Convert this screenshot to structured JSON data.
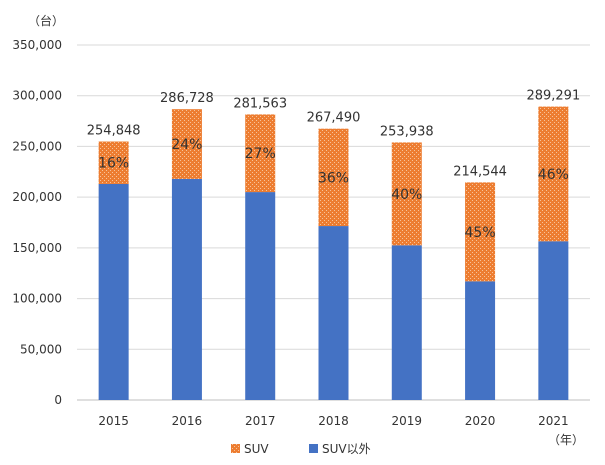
{
  "chart_data": {
    "type": "bar",
    "stacked": true,
    "y_unit": "（台）",
    "x_unit": "（年）",
    "categories": [
      "2015",
      "2016",
      "2017",
      "2018",
      "2019",
      "2020",
      "2021"
    ],
    "series": [
      {
        "name": "SUV以外",
        "color": "#4472C4",
        "values": [
          213000,
          218000,
          205000,
          171500,
          152500,
          117000,
          156500
        ]
      },
      {
        "name": "SUV",
        "color": "#ED7D31",
        "pattern": "dotted",
        "values": [
          41848,
          68728,
          76563,
          95990,
          101438,
          97544,
          132791
        ]
      }
    ],
    "totals": [
      "254,848",
      "286,728",
      "281,563",
      "267,490",
      "253,938",
      "214,544",
      "289,291"
    ],
    "suv_share_labels": [
      "16%",
      "24%",
      "27%",
      "36%",
      "40%",
      "45%",
      "46%"
    ],
    "ylim": [
      0,
      350000
    ],
    "yticks": [
      0,
      50000,
      100000,
      150000,
      200000,
      250000,
      300000,
      350000
    ],
    "ytick_labels": [
      "0",
      "50,000",
      "100,000",
      "150,000",
      "200,000",
      "250,000",
      "300,000",
      "350,000"
    ],
    "grid": true,
    "legend": {
      "placement": "bottom",
      "items": [
        "SUV",
        "SUV以外"
      ]
    }
  }
}
